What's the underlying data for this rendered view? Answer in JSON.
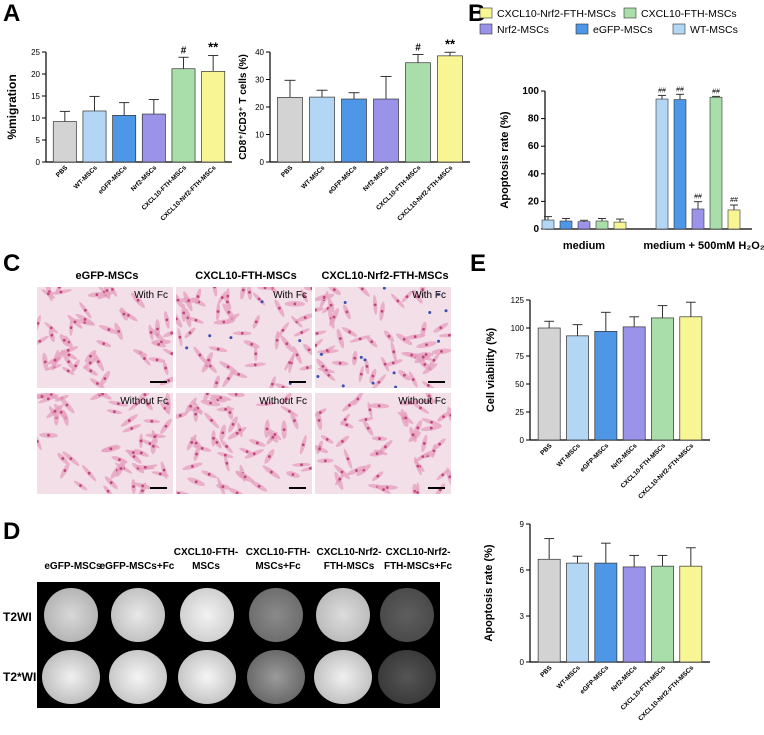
{
  "panels": {
    "a": "A",
    "b": "B",
    "c": "C",
    "d": "D",
    "e": "E"
  },
  "colors": {
    "PBS": "#d3d3d3",
    "WT-MSCs": "#b3d6f4",
    "eGFP-MSCs": "#4d97e6",
    "Nrf2-MSCs": "#9b93ea",
    "CXCL10-FTH-MSCs": "#a9deaa",
    "CXCL10-Nrf2-FTH-MSCs": "#f8f595"
  },
  "chart_data": [
    {
      "id": "migration",
      "type": "bar",
      "categories": [
        "PBS",
        "WT-MSCs",
        "eGFP-MSCs",
        "Nrf2-MSCs",
        "CXCL10-FTH-MSCs",
        "CXCL10-Nrf2-FTH-MSCs"
      ],
      "values": [
        9.2,
        11.6,
        10.6,
        10.9,
        21.2,
        20.6
      ],
      "errors": [
        2.3,
        3.3,
        2.9,
        3.3,
        2.6,
        3.6
      ],
      "annotations": [
        "",
        "",
        "",
        "",
        "#",
        "**"
      ],
      "ylabel": "%migration",
      "ylim": [
        0,
        25
      ],
      "yticks": [
        "0",
        "5",
        "10",
        "15",
        "20",
        "25"
      ]
    },
    {
      "id": "cd8",
      "type": "bar",
      "categories": [
        "PBS",
        "WT-MSCs",
        "eGFP-MSCs",
        "Nrf2-MSCs",
        "CXCL10-FTH-MSCs",
        "CXCL10-Nrf2-FTH-MSCs"
      ],
      "values": [
        23.5,
        23.6,
        22.9,
        22.9,
        36.1,
        38.6
      ],
      "errors": [
        6.2,
        2.5,
        2.3,
        8.2,
        3.0,
        1.3
      ],
      "annotations": [
        "",
        "",
        "",
        "",
        "#",
        "**"
      ],
      "ylabel": "CD8⁺/CD3⁺ T cells (%)",
      "ylim": [
        0,
        40
      ],
      "yticks": [
        "0",
        "10",
        "20",
        "30",
        "40"
      ]
    },
    {
      "id": "apoptosis_h2o2",
      "type": "bar",
      "legend": [
        "CXCL10-Nrf2-FTH-MSCs",
        "CXCL10-FTH-MSCs",
        "Nrf2-MSCs",
        "eGFP-MSCs",
        "WT-MSCs"
      ],
      "groups": [
        "medium",
        "medium  + 500mM H₂O₂"
      ],
      "series": [
        {
          "name": "WT-MSCs",
          "values": [
            6.5,
            94.2
          ],
          "errors": [
            2.5,
            2.6
          ]
        },
        {
          "name": "eGFP-MSCs",
          "values": [
            5.8,
            93.8
          ],
          "errors": [
            1.8,
            3.8
          ]
        },
        {
          "name": "Nrf2-MSCs",
          "values": [
            5.3,
            14.5
          ],
          "errors": [
            1.0,
            5.3
          ]
        },
        {
          "name": "CXCL10-FTH-MSCs",
          "values": [
            5.8,
            95.5
          ],
          "errors": [
            1.8,
            0.6
          ]
        },
        {
          "name": "CXCL10-Nrf2-FTH-MSCs",
          "values": [
            5.0,
            13.8
          ],
          "errors": [
            2.2,
            3.6
          ]
        }
      ],
      "annotations_group2": [
        "##",
        "##",
        "##",
        "##",
        "##"
      ],
      "ylabel": "Apoptosis rate (%)",
      "ylim": [
        0,
        100
      ],
      "yticks": [
        "0",
        "20",
        "40",
        "60",
        "80",
        "100"
      ]
    },
    {
      "id": "viability",
      "type": "bar",
      "categories": [
        "PBS",
        "WT-MSCs",
        "eGFP-MSCs",
        "Nrf2-MSCs",
        "CXCL10-FTH-MSCs",
        "CXCL10-Nrf2-FTH-MSCs"
      ],
      "values": [
        100,
        93,
        97,
        101,
        109,
        110
      ],
      "errors": [
        6,
        10,
        17,
        9,
        11,
        13
      ],
      "ylabel": "Cell viability (%)",
      "ylim": [
        0,
        125
      ],
      "yticks": [
        "0",
        "25",
        "50",
        "75",
        "100",
        "125"
      ]
    },
    {
      "id": "apoptosis_baseline",
      "type": "bar",
      "categories": [
        "PBS",
        "WT-MSCs",
        "eGFP-MSCs",
        "Nrf2-MSCs",
        "CXCL10-FTH-MSCs",
        "CXCL10-Nrf2-FTH-MSCs"
      ],
      "values": [
        6.7,
        6.45,
        6.45,
        6.2,
        6.25,
        6.25
      ],
      "errors": [
        1.35,
        0.45,
        1.3,
        0.75,
        0.7,
        1.2
      ],
      "ylabel": "Apoptosis rate (%)",
      "ylim": [
        0,
        9
      ],
      "yticks": [
        "0",
        "3",
        "6",
        "9"
      ]
    }
  ],
  "micrographs": {
    "columns": [
      "eGFP-MSCs",
      "CXCL10-FTH-MSCs",
      "CXCL10-Nrf2-FTH-MSCs"
    ],
    "rows": [
      "With Fc",
      "Without Fc"
    ]
  },
  "mri": {
    "columns": [
      "eGFP-MSCs",
      "eGFP-MSCs+Fc",
      "CXCL10-FTH-\nMSCs",
      "CXCL10-FTH-\nMSCs+Fc",
      "CXCL10-Nrf2-\nFTH-MSCs",
      "CXCL10-Nrf2-\nFTH-MSCs+Fc"
    ],
    "rows": [
      "T2WI",
      "T2*WI"
    ]
  }
}
